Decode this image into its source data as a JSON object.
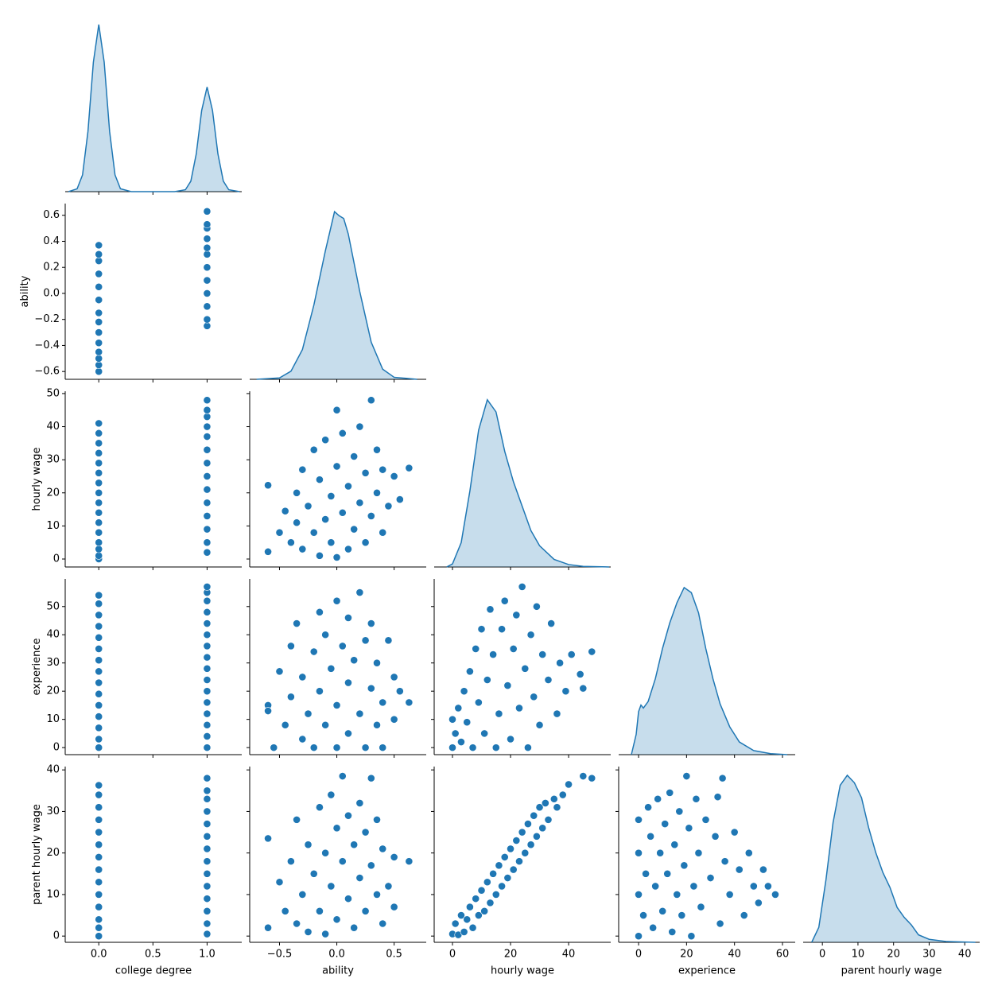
{
  "chart_data": [
    {
      "type": "kde",
      "color": "#1f77b4",
      "ylim": [
        0,
        3.68
      ],
      "x": [
        -0.28,
        -0.2,
        -0.15,
        -0.1,
        -0.05,
        0,
        0.05,
        0.1,
        0.15,
        0.2,
        0.3,
        0.5,
        0.7,
        0.8,
        0.85,
        0.9,
        0.95,
        1.0,
        1.05,
        1.1,
        1.15,
        1.2,
        1.3
      ],
      "values": [
        0,
        0.06,
        0.35,
        1.26,
        2.71,
        3.5,
        2.71,
        1.26,
        0.35,
        0.06,
        0,
        0,
        0,
        0.04,
        0.22,
        0.79,
        1.7,
        2.19,
        1.7,
        0.79,
        0.22,
        0.04,
        0
      ]
    },
    {
      "type": "scatter",
      "color": "#1f77b4",
      "ylabel": "ability",
      "ylim": [
        -0.66,
        0.69
      ],
      "yticks": [
        {
          "value": -0.6,
          "label": "−0.6"
        },
        {
          "value": -0.4,
          "label": "−0.4"
        },
        {
          "value": -0.2,
          "label": "−0.2"
        },
        {
          "value": 0,
          "label": "0.0"
        },
        0.2,
        0.4,
        0.6
      ],
      "x": [
        0,
        0,
        0,
        0,
        0,
        0,
        0,
        0,
        0,
        0,
        0,
        0,
        0,
        0,
        1,
        1,
        1,
        1,
        1,
        1,
        1,
        1,
        1,
        1,
        1,
        1
      ],
      "values": [
        -0.6,
        -0.55,
        -0.5,
        -0.45,
        -0.38,
        -0.3,
        -0.22,
        -0.15,
        -0.05,
        0.05,
        0.15,
        0.25,
        0.3,
        0.37,
        -0.25,
        -0.2,
        -0.1,
        0,
        0.1,
        0.2,
        0.3,
        0.35,
        0.42,
        0.5,
        0.53,
        0.63
      ]
    },
    {
      "type": "kde",
      "color": "#1f77b4",
      "ylim": [
        0,
        2.6
      ],
      "x": [
        -0.7,
        -0.5,
        -0.4,
        -0.3,
        -0.2,
        -0.1,
        -0.02,
        0.02,
        0.06,
        0.1,
        0.2,
        0.3,
        0.4,
        0.5,
        0.7
      ],
      "values": [
        0,
        0.02,
        0.12,
        0.44,
        1.1,
        1.9,
        2.48,
        2.42,
        2.38,
        2.15,
        1.3,
        0.55,
        0.15,
        0.03,
        0
      ]
    },
    {
      "type": "scatter",
      "color": "#1f77b4",
      "ylabel": "hourly wage",
      "ylim": [
        -2.4,
        50.7
      ],
      "yticks": [
        0,
        10,
        20,
        30,
        40,
        50
      ],
      "x": [
        0,
        0,
        0,
        0,
        0,
        0,
        0,
        0,
        0,
        0,
        0,
        0,
        0,
        0,
        0,
        0,
        1,
        1,
        1,
        1,
        1,
        1,
        1,
        1,
        1,
        1,
        1,
        1,
        1,
        1
      ],
      "values": [
        0,
        1,
        3,
        5,
        8,
        11,
        14,
        17,
        20,
        23,
        26,
        29,
        32,
        35,
        38,
        41,
        2,
        5,
        9,
        13,
        17,
        21,
        25,
        29,
        33,
        37,
        40,
        43,
        45,
        48
      ]
    },
    {
      "type": "scatter",
      "color": "#1f77b4",
      "x": [
        -0.6,
        -0.6,
        -0.5,
        -0.45,
        -0.4,
        -0.35,
        -0.35,
        -0.3,
        -0.3,
        -0.25,
        -0.2,
        -0.2,
        -0.15,
        -0.15,
        -0.1,
        -0.1,
        -0.05,
        -0.05,
        0,
        0,
        0,
        0.05,
        0.05,
        0.1,
        0.1,
        0.15,
        0.15,
        0.2,
        0.2,
        0.25,
        0.25,
        0.3,
        0.3,
        0.35,
        0.35,
        0.4,
        0.4,
        0.45,
        0.5,
        0.55,
        0.63
      ],
      "values": [
        22.3,
        2.2,
        8,
        14.5,
        5,
        20,
        11,
        27,
        3,
        16,
        33,
        8,
        24,
        1,
        12,
        36,
        19,
        5,
        28,
        45,
        0.5,
        14,
        38,
        22,
        3,
        31,
        9,
        17,
        40,
        26,
        5,
        48,
        13,
        33,
        20,
        8,
        27,
        16,
        25,
        18,
        27.5
      ]
    },
    {
      "type": "kde",
      "color": "#1f77b4",
      "ylim": [
        0,
        0.0578
      ],
      "x": [
        -2,
        0,
        3,
        6,
        9,
        12,
        15,
        18,
        21,
        24,
        27,
        30,
        35,
        40,
        45,
        54
      ],
      "values": [
        0,
        0.001,
        0.008,
        0.025,
        0.045,
        0.055,
        0.051,
        0.038,
        0.028,
        0.02,
        0.012,
        0.007,
        0.0025,
        0.0008,
        0.0002,
        0
      ]
    },
    {
      "type": "scatter",
      "color": "#1f77b4",
      "ylabel": "experience",
      "ylim": [
        -2.5,
        59.8
      ],
      "yticks": [
        0,
        10,
        20,
        30,
        40,
        50
      ],
      "x": [
        0,
        0,
        0,
        0,
        0,
        0,
        0,
        0,
        0,
        0,
        0,
        0,
        0,
        0,
        0,
        1,
        1,
        1,
        1,
        1,
        1,
        1,
        1,
        1,
        1,
        1,
        1,
        1,
        1,
        1,
        1
      ],
      "values": [
        0,
        3,
        7,
        11,
        15,
        19,
        23,
        27,
        31,
        35,
        39,
        43,
        47,
        51,
        54,
        0,
        4,
        8,
        12,
        16,
        20,
        24,
        28,
        32,
        36,
        40,
        44,
        48,
        52,
        55,
        57
      ]
    },
    {
      "type": "scatter",
      "color": "#1f77b4",
      "x": [
        -0.6,
        -0.6,
        -0.55,
        -0.5,
        -0.45,
        -0.4,
        -0.4,
        -0.35,
        -0.3,
        -0.3,
        -0.25,
        -0.2,
        -0.2,
        -0.15,
        -0.15,
        -0.1,
        -0.1,
        -0.05,
        0,
        0,
        0,
        0.05,
        0.1,
        0.1,
        0.1,
        0.15,
        0.2,
        0.2,
        0.25,
        0.25,
        0.3,
        0.3,
        0.35,
        0.35,
        0.4,
        0.4,
        0.45,
        0.5,
        0.5,
        0.55,
        0.63
      ],
      "values": [
        15,
        13,
        0,
        27,
        8,
        36,
        18,
        44,
        3,
        25,
        12,
        34,
        0,
        48,
        20,
        8,
        40,
        28,
        52,
        0,
        15,
        36,
        23,
        5,
        46,
        31,
        55,
        12,
        38,
        0,
        21,
        44,
        8,
        30,
        16,
        0,
        38,
        25,
        10,
        20,
        16
      ]
    },
    {
      "type": "scatter",
      "color": "#1f77b4",
      "x": [
        0,
        0,
        1,
        2,
        3,
        4,
        5,
        6,
        7,
        8,
        9,
        10,
        11,
        12,
        13,
        14,
        15,
        16,
        17,
        18,
        19,
        20,
        21,
        22,
        23,
        24,
        25,
        26,
        27,
        28,
        29,
        30,
        31,
        33,
        34,
        36,
        37,
        39,
        41,
        44,
        45,
        48
      ],
      "values": [
        0,
        10,
        5,
        14,
        2,
        20,
        9,
        27,
        0,
        35,
        16,
        42,
        5,
        24,
        49,
        33,
        0,
        12,
        42,
        52,
        22,
        3,
        35,
        47,
        14,
        57,
        28,
        0,
        40,
        18,
        50,
        8,
        33,
        24,
        44,
        12,
        30,
        20,
        33,
        26,
        21,
        34
      ]
    },
    {
      "type": "kde",
      "color": "#1f77b4",
      "ylim": [
        0,
        0.0347
      ],
      "x": [
        -3,
        -1,
        0,
        1,
        2,
        4,
        7,
        10,
        13,
        16,
        19,
        22,
        25,
        28,
        31,
        34,
        38,
        42,
        48,
        55,
        62
      ],
      "values": [
        0,
        0.004,
        0.0085,
        0.0098,
        0.0092,
        0.0105,
        0.015,
        0.021,
        0.026,
        0.03,
        0.033,
        0.032,
        0.028,
        0.021,
        0.015,
        0.01,
        0.0055,
        0.0025,
        0.0008,
        0.0002,
        0
      ]
    },
    {
      "type": "scatter",
      "color": "#1f77b4",
      "xlabel": "college degree",
      "xlim": [
        -0.31,
        1.32
      ],
      "xticks": [
        {
          "value": 0,
          "label": "0.0"
        },
        0.5,
        {
          "value": 1,
          "label": "1.0"
        }
      ],
      "ylabel": "parent hourly wage",
      "ylim": [
        -1.5,
        40.8
      ],
      "yticks": [
        0,
        10,
        20,
        30,
        40
      ],
      "x": [
        0,
        0,
        0,
        0,
        0,
        0,
        0,
        0,
        0,
        0,
        0,
        0,
        0,
        0,
        1,
        1,
        1,
        1,
        1,
        1,
        1,
        1,
        1,
        1,
        1,
        1,
        1,
        1
      ],
      "values": [
        0,
        2,
        4,
        7,
        10,
        13,
        16,
        19,
        22,
        25,
        28,
        31,
        34,
        36.3,
        0.5,
        3,
        6,
        9,
        12,
        15,
        18,
        21,
        24,
        27,
        30,
        33,
        35,
        38
      ]
    },
    {
      "type": "scatter",
      "color": "#1f77b4",
      "xlabel": "ability",
      "xlim": [
        -0.76,
        0.78
      ],
      "xticks": [
        {
          "value": -0.5,
          "label": "−0.5"
        },
        {
          "value": 0,
          "label": "0.0"
        },
        0.5
      ],
      "x": [
        -0.6,
        -0.6,
        -0.5,
        -0.45,
        -0.4,
        -0.35,
        -0.35,
        -0.3,
        -0.25,
        -0.25,
        -0.2,
        -0.15,
        -0.15,
        -0.1,
        -0.1,
        -0.05,
        -0.05,
        0,
        0,
        0.05,
        0.05,
        0.1,
        0.1,
        0.15,
        0.15,
        0.2,
        0.2,
        0.25,
        0.25,
        0.3,
        0.3,
        0.35,
        0.35,
        0.4,
        0.4,
        0.45,
        0.5,
        0.5,
        0.63
      ],
      "values": [
        23.5,
        2,
        13,
        6,
        18,
        28,
        3,
        10,
        22,
        1,
        15,
        31,
        6,
        20,
        0.5,
        12,
        34,
        26,
        4,
        18,
        38.5,
        9,
        29,
        2,
        22,
        14,
        32,
        6,
        25,
        38,
        17,
        10,
        28,
        3,
        21,
        12,
        7,
        19,
        18
      ]
    },
    {
      "type": "scatter",
      "color": "#1f77b4",
      "xlabel": "hourly wage",
      "xlim": [
        -6.3,
        54.5
      ],
      "xticks": [
        0,
        20,
        40
      ],
      "x": [
        0,
        1,
        2,
        3,
        4,
        5,
        6,
        7,
        8,
        9,
        10,
        11,
        12,
        13,
        14,
        15,
        16,
        17,
        18,
        19,
        20,
        21,
        22,
        23,
        24,
        25,
        26,
        27,
        28,
        29,
        30,
        31,
        32,
        33,
        35,
        36,
        38,
        40,
        45,
        48
      ],
      "values": [
        0.5,
        3,
        0.3,
        5,
        1,
        4,
        7,
        2,
        9,
        5,
        11,
        6,
        13,
        8,
        15,
        10,
        17,
        12,
        19,
        14,
        21,
        16,
        23,
        18,
        25,
        20,
        27,
        22,
        29,
        24,
        31,
        26,
        32,
        28,
        33,
        31,
        34,
        36.5,
        38.5,
        38
      ]
    },
    {
      "type": "scatter",
      "color": "#1f77b4",
      "xlabel": "experience",
      "xlim": [
        -8.3,
        65.3
      ],
      "xticks": [
        0,
        20,
        40,
        60
      ],
      "x": [
        0,
        0,
        0,
        0,
        2,
        3,
        4,
        5,
        6,
        7,
        8,
        9,
        10,
        11,
        12,
        13,
        14,
        15,
        16,
        17,
        18,
        19,
        20,
        21,
        22,
        23,
        24,
        25,
        26,
        28,
        30,
        32,
        33,
        34,
        35,
        36,
        38,
        40,
        42,
        44,
        46,
        48,
        50,
        52,
        54,
        57
      ],
      "values": [
        0,
        10,
        20,
        28,
        5,
        15,
        31,
        24,
        2,
        12,
        33,
        20,
        6,
        27,
        15,
        34.5,
        1,
        22,
        10,
        30,
        5,
        17,
        38.5,
        26,
        0,
        12,
        33,
        20,
        7,
        28,
        14,
        24,
        33.5,
        3,
        38,
        18,
        10,
        25,
        16,
        5,
        20,
        12,
        8,
        16,
        12,
        10
      ]
    },
    {
      "type": "kde",
      "color": "#1f77b4",
      "xlabel": "parent hourly wage",
      "xlim": [
        -5.4,
        44.2
      ],
      "xticks": [
        0,
        10,
        20,
        30,
        40
      ],
      "ylim": [
        0,
        0.0705
      ],
      "x": [
        -3,
        -1,
        1,
        3,
        5,
        7,
        9,
        11,
        13,
        15,
        17,
        19,
        21,
        23,
        25,
        27,
        30,
        35,
        43
      ],
      "values": [
        0,
        0.006,
        0.025,
        0.048,
        0.063,
        0.067,
        0.064,
        0.058,
        0.046,
        0.036,
        0.028,
        0.022,
        0.014,
        0.01,
        0.007,
        0.003,
        0.0012,
        0.0003,
        0
      ]
    }
  ]
}
